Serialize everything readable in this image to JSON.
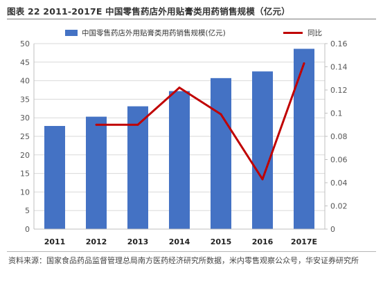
{
  "title": "图表 22 2011-2017E 中国零售药店外用贴膏类用药销售规模（亿元）",
  "source": "资料来源：国家食品药品监督管理总局南方医药经济研究所数据，米内零售观察公众号，华安证券研究所",
  "chart_data": {
    "type": "bar",
    "categories": [
      "2011",
      "2012",
      "2013",
      "2014",
      "2015",
      "2016",
      "2017E"
    ],
    "series": [
      {
        "name": "中国零售药店外用贴膏类用药销售规模(亿元)",
        "type": "bar",
        "axis": "left",
        "values": [
          27.8,
          30.3,
          33.1,
          37.2,
          40.7,
          42.5,
          48.6
        ]
      },
      {
        "name": "同比",
        "type": "line",
        "axis": "right",
        "values": [
          null,
          0.09,
          0.09,
          0.122,
          0.099,
          0.043,
          0.143
        ]
      }
    ],
    "y_left": {
      "min": 0,
      "max": 50,
      "step": 5,
      "ticks": [
        "0",
        "5",
        "10",
        "15",
        "20",
        "25",
        "30",
        "35",
        "40",
        "45",
        "50"
      ]
    },
    "y_right": {
      "min": 0,
      "max": 0.16,
      "step": 0.02,
      "ticks": [
        "0",
        "0.02",
        "0.04",
        "0.06",
        "0.08",
        "0.1",
        "0.12",
        "0.14",
        "0.16"
      ]
    },
    "legend_position": "top",
    "grid": true,
    "colors": {
      "bar": "#4472c4",
      "line": "#c00000",
      "grid": "#d9d9d9",
      "axis": "#bfbfbf"
    }
  }
}
